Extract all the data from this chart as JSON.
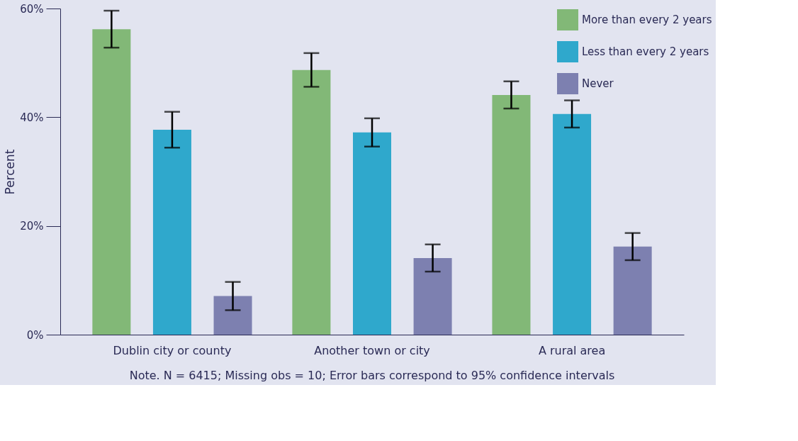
{
  "chart_data": {
    "type": "bar",
    "ylabel": "Percent",
    "categories": [
      "Dublin city or county",
      "Another town or city",
      "A rural area"
    ],
    "series": [
      {
        "name": "More than every 2 years",
        "color": "#82b877",
        "values": [
          56.2,
          48.7,
          44.1
        ],
        "errors": [
          3.4,
          3.1,
          2.5
        ]
      },
      {
        "name": "Less than every 2 years",
        "color": "#2fa8cc",
        "values": [
          37.7,
          37.2,
          40.6
        ],
        "errors": [
          3.3,
          2.6,
          2.5
        ]
      },
      {
        "name": "Never",
        "color": "#7d80b0",
        "values": [
          7.1,
          14.1,
          16.2
        ],
        "errors": [
          2.6,
          2.5,
          2.5
        ]
      }
    ],
    "ylim": [
      0,
      60
    ],
    "yticks": [
      {
        "value": 0,
        "label": "0%"
      },
      {
        "value": 20,
        "label": "20%"
      },
      {
        "value": 40,
        "label": "40%"
      },
      {
        "value": 60,
        "label": "60%"
      }
    ],
    "grid": false,
    "legend": "top right",
    "annotations": [
      "Note. N = 6415; Missing obs = 10; Error bars correspond to 95% confidence intervals"
    ]
  }
}
